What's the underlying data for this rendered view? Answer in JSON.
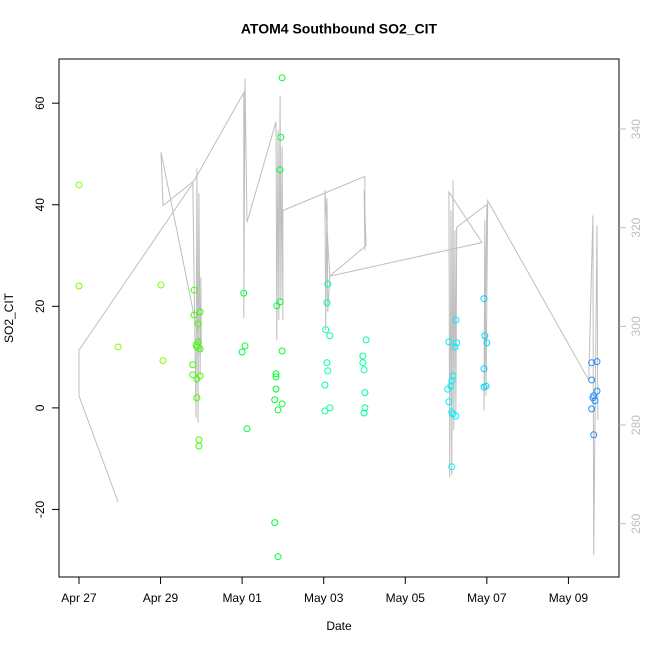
{
  "chart_data": {
    "type": "scatter",
    "title": "ATOM4 Southbound SO2_CIT",
    "xlabel": "Date",
    "ylabel": "SO2_CIT",
    "xlim": [
      -0.49,
      13.24
    ],
    "ylim": [
      -33.3,
      68.7
    ],
    "y2lim": [
      249.2,
      354.2
    ],
    "xticks": [
      {
        "value": 0,
        "label": "Apr 27"
      },
      {
        "value": 2,
        "label": "Apr 29"
      },
      {
        "value": 4,
        "label": "May 01"
      },
      {
        "value": 6,
        "label": "May 03"
      },
      {
        "value": 8,
        "label": "May 05"
      },
      {
        "value": 10,
        "label": "May 07"
      },
      {
        "value": 12,
        "label": "May 09"
      }
    ],
    "yticks": [
      -20,
      0,
      20,
      40,
      60
    ],
    "y2ticks": [
      260,
      280,
      300,
      320,
      340
    ],
    "y2color": "#bebebe",
    "series": [
      {
        "mark": "points",
        "color": "#80ff00",
        "x": [
          0,
          0,
          0.96,
          2.01,
          2.06
        ],
        "values": [
          43.9,
          24.0,
          12.0,
          24.2,
          9.3
        ]
      },
      {
        "mark": "points",
        "color": "#40ff00",
        "x": [
          2.82,
          2.82,
          2.79,
          2.79,
          2.87,
          2.89,
          2.92,
          2.92,
          2.97,
          2.89,
          2.89,
          2.97,
          2.97,
          2.94,
          2.94
        ],
        "values": [
          23.2,
          18.3,
          8.5,
          6.5,
          12.4,
          12.0,
          13.0,
          16.5,
          18.9,
          2.0,
          5.7,
          6.3,
          11.6,
          -6.3,
          -7.5
        ]
      },
      {
        "mark": "points",
        "color": "#00ff30",
        "x": [
          4.04,
          4.07,
          4.0,
          4.12,
          4.8,
          4.88,
          4.83,
          4.83,
          4.83,
          4.8,
          4.88,
          4.85,
          4.93,
          4.95,
          4.93,
          4.98,
          4.98,
          4.98
        ],
        "values": [
          22.6,
          12.2,
          11.0,
          -4.1,
          -22.6,
          -29.3,
          6.1,
          3.7,
          6.7,
          1.6,
          -0.4,
          20.1,
          20.9,
          53.3,
          46.9,
          65.0,
          11.2,
          0.8
        ]
      },
      {
        "mark": "points",
        "color": "#00ff99",
        "x": [
          6.03,
          6.15,
          6.03,
          6.1,
          6.08,
          6.05,
          6.15,
          6.08,
          6.1,
          6.96,
          6.96,
          6.99,
          7.04,
          7.01,
          7.01,
          6.99
        ],
        "values": [
          -0.6,
          0,
          4.5,
          7.3,
          8.9,
          15.4,
          14.2,
          20.7,
          24.4,
          10.2,
          8.9,
          7.5,
          13.4,
          3.0,
          0,
          -1.0
        ]
      },
      {
        "mark": "points",
        "color": "#00eeff",
        "x": [
          9.07,
          9.04,
          9.07,
          9.12,
          9.14,
          9.17,
          9.14,
          9.17,
          9.24,
          9.14,
          9.22,
          9.24,
          9.26
        ],
        "values": [
          13.0,
          3.7,
          1.2,
          4.3,
          5.3,
          6.3,
          -0.8,
          -1.2,
          -1.6,
          -11.6,
          12.0,
          17.3,
          12.8
        ]
      },
      {
        "mark": "points",
        "color": "#00d5ff",
        "x": [
          9.93,
          9.93,
          9.95,
          10.0,
          9.93,
          9.98
        ],
        "values": [
          21.5,
          7.7,
          14.2,
          12.8,
          4.1,
          4.3
        ]
      },
      {
        "mark": "points",
        "color": "#1e90ff",
        "x": [
          12.57,
          12.7,
          12.57,
          12.6,
          12.65,
          12.7,
          12.62,
          12.57,
          12.62
        ],
        "values": [
          8.9,
          9.1,
          5.5,
          2.0,
          1.4,
          3.3,
          2.4,
          -0.2,
          -5.3
        ]
      },
      {
        "mark": "line",
        "axis": "y2",
        "color": "#bebebe",
        "x": [
          0.96,
          0,
          0,
          2.79,
          2.87,
          2.89,
          2.92,
          2.94,
          2.97,
          2.99,
          3.0,
          2.01,
          2.06,
          2.82,
          4.04,
          4.04,
          4.07,
          4.12,
          4.83,
          4.85,
          4.88,
          4.9,
          4.93,
          4.95,
          4.98,
          5.0,
          5.0,
          7.01,
          7.01,
          6.99,
          7.04,
          6.15,
          6.03,
          6.05,
          6.08,
          6.1,
          6.15,
          9.88,
          9.07,
          9.09,
          9.12,
          9.14,
          9.17,
          9.19,
          9.22,
          9.24,
          9.26,
          10.0,
          9.93,
          9.95,
          9.98,
          10.02,
          12.5,
          12.6,
          12.62,
          12.7,
          12.72
        ],
        "values": [
          264.4,
          285.9,
          295.2,
          329.0,
          281.5,
          332.0,
          280.5,
          327.0,
          290.0,
          310.0,
          295.0,
          335.3,
          324.5,
          329.5,
          347.4,
          301.7,
          350.2,
          321.1,
          341.5,
          297.2,
          339.7,
          301.3,
          346.8,
          305.3,
          336.4,
          301.3,
          323.5,
          330.4,
          315.4,
          327.6,
          316.4,
          310.2,
          327.6,
          299.2,
          326.0,
          303.0,
          310.2,
          317.0,
          327.2,
          269.3,
          323.5,
          269.9,
          329.6,
          279.0,
          319.5,
          282.0,
          320.1,
          324.7,
          283.0,
          321.5,
          286.0,
          325.5,
          289.1,
          322.5,
          253.7,
          320.5,
          281.0
        ]
      }
    ]
  }
}
